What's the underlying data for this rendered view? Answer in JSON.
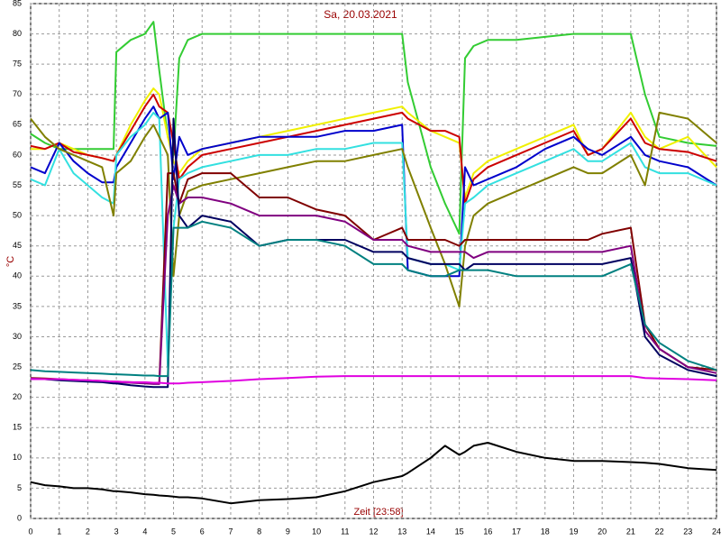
{
  "chart_data": {
    "type": "line",
    "title": "Sa, 20.03.2021",
    "y_label": "°C",
    "x_label": "Zeit [23:58]",
    "xlim": [
      0,
      24
    ],
    "xticks": [
      0,
      1,
      2,
      3,
      4,
      5,
      6,
      7,
      8,
      9,
      10,
      11,
      12,
      13,
      14,
      15,
      16,
      17,
      18,
      19,
      20,
      21,
      22,
      23,
      24
    ],
    "ylim": [
      0,
      85
    ],
    "yticks": [
      0,
      5,
      10,
      15,
      20,
      25,
      30,
      35,
      40,
      45,
      50,
      55,
      60,
      65,
      70,
      75,
      80,
      85
    ],
    "grid": true,
    "x": [
      0,
      0.5,
      1,
      1.5,
      2,
      2.5,
      2.9,
      3,
      3.5,
      4,
      4.3,
      4.5,
      4.8,
      5,
      5.2,
      5.5,
      6,
      7,
      8,
      9,
      10,
      11,
      12,
      13,
      13.2,
      14,
      14.5,
      15,
      15.2,
      15.5,
      16,
      17,
      18,
      19,
      19.5,
      20,
      21,
      21.5,
      22,
      23,
      24
    ],
    "series": [
      {
        "color": "#33cc33",
        "values": [
          63.5,
          62,
          61,
          61,
          61,
          61,
          61,
          77,
          79,
          80,
          82,
          74,
          63,
          60,
          76,
          79,
          80,
          80,
          80,
          80,
          80,
          80,
          80,
          80,
          72,
          58,
          52,
          47,
          76,
          78,
          79,
          79,
          79.5,
          80,
          80,
          80,
          80,
          70,
          63,
          62,
          61.5
        ]
      },
      {
        "color": "#f0f000",
        "values": [
          61,
          61,
          62,
          61,
          60,
          59.5,
          59,
          60,
          65,
          69,
          71,
          70,
          63,
          59,
          57,
          59,
          61,
          62,
          63,
          64,
          65,
          66,
          67,
          68,
          67,
          64,
          63,
          62,
          53,
          57,
          59,
          61,
          63,
          65,
          60,
          61,
          67,
          63,
          61,
          63,
          58
        ]
      },
      {
        "color": "#cc0000",
        "values": [
          61.5,
          61,
          62,
          60.5,
          60,
          59.5,
          59,
          60,
          64,
          68,
          70,
          68,
          67,
          62,
          56,
          58,
          60,
          61,
          62,
          63,
          64,
          65,
          66,
          67,
          66,
          64,
          64,
          63,
          52,
          56,
          58,
          60,
          62,
          64,
          60,
          61,
          66,
          62,
          61,
          60.5,
          59
        ]
      },
      {
        "color": "#0000cc",
        "values": [
          58,
          57,
          62,
          59,
          57,
          55.5,
          55.5,
          58,
          62,
          66,
          68,
          66,
          67,
          56,
          63,
          60,
          61,
          62,
          63,
          63,
          63,
          64,
          64,
          65,
          41,
          40,
          40,
          40,
          58,
          55,
          56,
          58,
          61,
          63,
          61,
          60,
          63,
          60,
          59,
          58,
          55
        ]
      },
      {
        "color": "#33e0e0",
        "values": [
          56,
          55,
          61,
          57,
          55,
          53,
          52,
          60,
          63,
          65,
          67,
          66,
          25,
          48,
          56,
          57,
          58,
          59,
          60,
          60,
          61,
          61,
          62,
          62,
          43,
          42,
          42,
          41,
          52,
          53,
          55,
          57,
          59,
          61,
          59,
          59,
          62,
          58,
          57,
          57,
          55
        ]
      },
      {
        "color": "#808000",
        "values": [
          66,
          63,
          61,
          60,
          59,
          58,
          50,
          57,
          59,
          63,
          65,
          63,
          60,
          40,
          50,
          54,
          55,
          56,
          57,
          58,
          59,
          59,
          60,
          61,
          58,
          48,
          42,
          35,
          45,
          50,
          52,
          54,
          56,
          58,
          57,
          57,
          60,
          55,
          67,
          66,
          62
        ]
      },
      {
        "color": "#800000",
        "values": [
          23.2,
          23.1,
          23,
          22.9,
          22.8,
          22.7,
          22.6,
          22.6,
          22.5,
          22.4,
          22.3,
          22.3,
          57,
          57,
          52,
          56,
          57,
          57,
          53,
          53,
          51,
          50,
          46,
          48,
          46,
          46,
          46,
          45,
          46,
          46,
          46,
          46,
          46,
          46,
          46,
          47,
          48,
          32,
          28,
          25,
          24.5
        ]
      },
      {
        "color": "#800080",
        "values": [
          23.1,
          23,
          22.9,
          22.8,
          22.7,
          22.6,
          22.5,
          22.5,
          22.4,
          22.3,
          22.2,
          22.2,
          50,
          55,
          52,
          53,
          53,
          52,
          50,
          50,
          50,
          49,
          46,
          46,
          45,
          44,
          44,
          44,
          44,
          43,
          44,
          44,
          44,
          44,
          44,
          44,
          45,
          31,
          28,
          25,
          24
        ]
      },
      {
        "color": "#000060",
        "values": [
          23,
          23,
          22.8,
          22.7,
          22.6,
          22.5,
          22.3,
          22.3,
          22,
          21.8,
          21.7,
          21.7,
          21.7,
          66,
          50,
          48,
          50,
          49,
          45,
          46,
          46,
          46,
          44,
          44,
          43,
          42,
          42,
          42,
          41,
          42,
          42,
          42,
          42,
          42,
          42,
          42,
          43,
          30,
          27,
          24.5,
          23.5
        ]
      },
      {
        "color": "#008080",
        "values": [
          24.5,
          24.3,
          24.2,
          24.1,
          24,
          23.9,
          23.8,
          23.8,
          23.7,
          23.6,
          23.6,
          23.5,
          23.5,
          48,
          48,
          48,
          49,
          48,
          45,
          46,
          46,
          45,
          42,
          42,
          41,
          40,
          40,
          41,
          41,
          41,
          41,
          40,
          40,
          40,
          40,
          40,
          42,
          32,
          29,
          26,
          24.5
        ]
      },
      {
        "color": "#e000e0",
        "values": [
          23,
          23,
          23,
          22.9,
          22.8,
          22.7,
          22.6,
          22.6,
          22.5,
          22.5,
          22.4,
          22.4,
          22.3,
          22.3,
          22.3,
          22.4,
          22.5,
          22.7,
          23,
          23.2,
          23.4,
          23.5,
          23.5,
          23.5,
          23.5,
          23.5,
          23.5,
          23.5,
          23.5,
          23.5,
          23.5,
          23.5,
          23.5,
          23.5,
          23.5,
          23.5,
          23.5,
          23.2,
          23.1,
          23,
          22.8
        ]
      },
      {
        "color": "#000000",
        "values": [
          6,
          5.5,
          5.3,
          5,
          5,
          4.8,
          4.5,
          4.5,
          4.3,
          4,
          3.9,
          3.8,
          3.7,
          3.6,
          3.5,
          3.5,
          3.3,
          2.5,
          3,
          3.2,
          3.5,
          4.5,
          6,
          7,
          7.5,
          10,
          12,
          10.5,
          11,
          12,
          12.5,
          11,
          10,
          9.5,
          9.5,
          9.5,
          9.3,
          9.2,
          9,
          8.3,
          8
        ]
      }
    ]
  }
}
